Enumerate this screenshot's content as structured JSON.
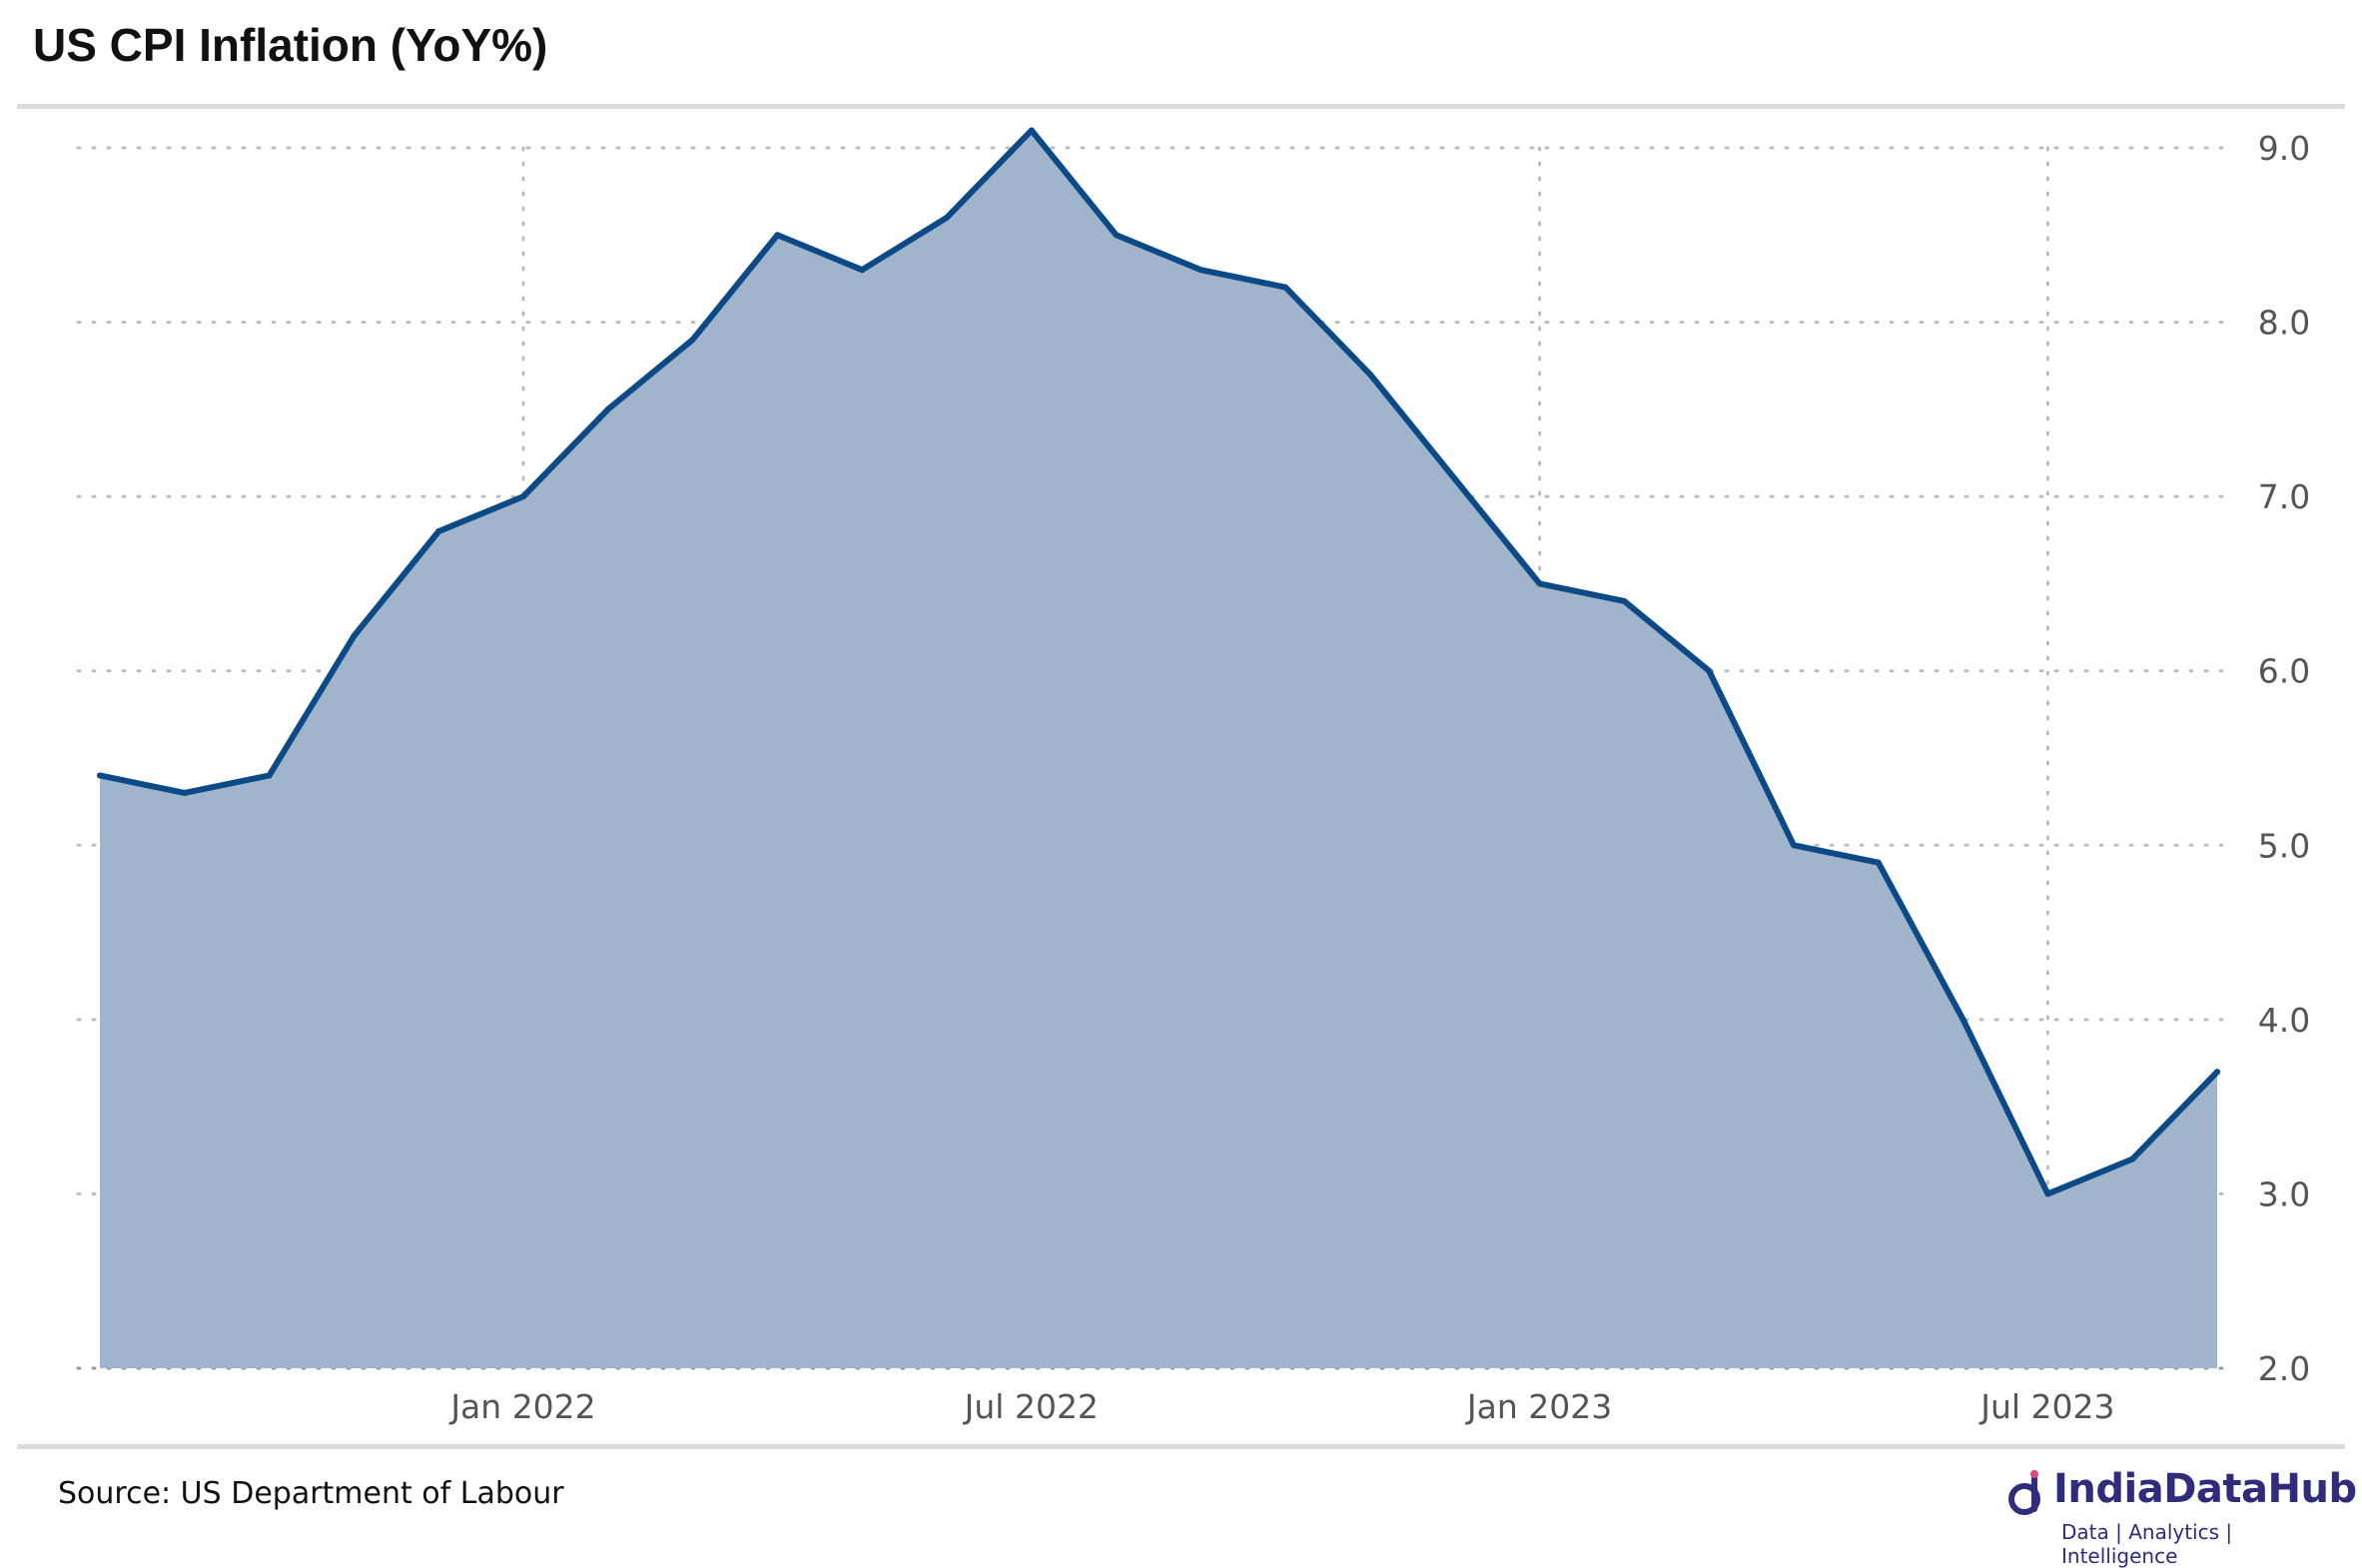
{
  "title": "US CPI Inflation (YoY%)",
  "source": "Source: US Department of Labour",
  "brand": {
    "name": "IndiaDataHub",
    "tagline": "Data | Analytics | Intelligence",
    "color": "#2f2c7c"
  },
  "chart_data": {
    "type": "area",
    "x": [
      "2021-08",
      "2021-09",
      "2021-10",
      "2021-11",
      "2021-12",
      "2022-01",
      "2022-02",
      "2022-03",
      "2022-04",
      "2022-05",
      "2022-06",
      "2022-07",
      "2022-08",
      "2022-09",
      "2022-10",
      "2022-11",
      "2022-12",
      "2023-01",
      "2023-02",
      "2023-03",
      "2023-04",
      "2023-05",
      "2023-06",
      "2023-07",
      "2023-08",
      "2023-09"
    ],
    "values": [
      5.4,
      5.3,
      5.4,
      6.2,
      6.8,
      7.0,
      7.5,
      7.9,
      8.5,
      8.3,
      8.6,
      9.1,
      8.5,
      8.3,
      8.2,
      7.7,
      7.1,
      6.5,
      6.4,
      6.0,
      5.0,
      4.9,
      4.0,
      3.0,
      3.2,
      3.7
    ],
    "x_ticks": [
      {
        "label": "Jan 2022",
        "index": 5
      },
      {
        "label": "Jul 2022",
        "index": 11
      },
      {
        "label": "Jan 2023",
        "index": 17
      },
      {
        "label": "Jul 2023",
        "index": 23
      }
    ],
    "y_ticks": [
      "2.0",
      "3.0",
      "4.0",
      "5.0",
      "6.0",
      "7.0",
      "8.0",
      "9.0"
    ],
    "ylim": [
      2.0,
      9.0
    ],
    "y_axis_position": "right",
    "grid": "dotted",
    "line_color": "#0b4a86",
    "fill_color": "#a0b4cb"
  }
}
